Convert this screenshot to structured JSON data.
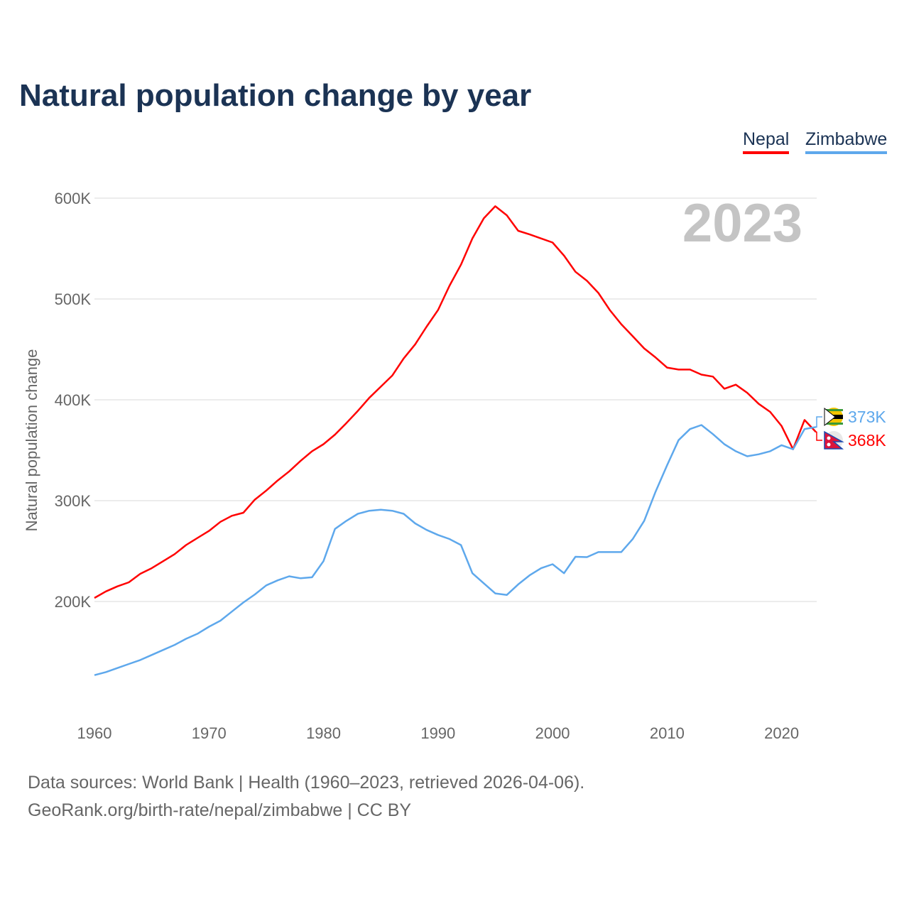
{
  "chart_data": {
    "type": "line",
    "title": "Natural population change by year",
    "xlabel": "",
    "ylabel": "Natural population change",
    "xlim": [
      1960,
      2023
    ],
    "ylim": [
      100000,
      600000
    ],
    "grid": true,
    "legend_position": "top-right",
    "year_watermark": "2023",
    "x_ticks": [
      "1960",
      "1970",
      "1980",
      "1990",
      "2000",
      "2010",
      "2020"
    ],
    "y_ticks": [
      {
        "value": 200000,
        "label": "200K"
      },
      {
        "value": 300000,
        "label": "300K"
      },
      {
        "value": 400000,
        "label": "400K"
      },
      {
        "value": 500000,
        "label": "500K"
      },
      {
        "value": 600000,
        "label": "600K"
      }
    ],
    "x": [
      1960,
      1961,
      1962,
      1963,
      1964,
      1965,
      1966,
      1967,
      1968,
      1969,
      1970,
      1971,
      1972,
      1973,
      1974,
      1975,
      1976,
      1977,
      1978,
      1979,
      1980,
      1981,
      1982,
      1983,
      1984,
      1985,
      1986,
      1987,
      1988,
      1989,
      1990,
      1991,
      1992,
      1993,
      1994,
      1995,
      1996,
      1997,
      1998,
      1999,
      2000,
      2001,
      2002,
      2003,
      2004,
      2005,
      2006,
      2007,
      2008,
      2009,
      2010,
      2011,
      2012,
      2013,
      2014,
      2015,
      2016,
      2017,
      2018,
      2019,
      2020,
      2021,
      2022,
      2023
    ],
    "series": [
      {
        "name": "Nepal",
        "color": "#ff0000",
        "end_label": "368K",
        "values": [
          203500,
          210000,
          215000,
          219000,
          227500,
          233000,
          240000,
          247000,
          256000,
          263000,
          270000,
          279000,
          285000,
          288000,
          301000,
          310000,
          320000,
          329000,
          339500,
          349000,
          356000,
          365500,
          377000,
          389000,
          402000,
          413000,
          424000,
          441000,
          455000,
          472500,
          489000,
          513000,
          534000,
          560000,
          580000,
          592000,
          583000,
          567600,
          564000,
          560000,
          556000,
          543000,
          527000,
          518000,
          506000,
          489000,
          475000,
          463000,
          451000,
          442000,
          432000,
          430000,
          430000,
          425000,
          423000,
          411000,
          415000,
          407000,
          396000,
          388000,
          374000,
          351000,
          380000,
          368000
        ]
      },
      {
        "name": "Zimbabwe",
        "color": "#5ea8ec",
        "end_label": "373K",
        "values": [
          127000,
          130000,
          134000,
          138000,
          142000,
          147000,
          152000,
          157000,
          163000,
          168000,
          175000,
          181000,
          190000,
          199000,
          207000,
          216000,
          221000,
          225000,
          223000,
          224000,
          240000,
          272000,
          280000,
          287000,
          290000,
          291000,
          290000,
          287000,
          277500,
          271000,
          266000,
          262000,
          256000,
          228000,
          218000,
          208000,
          206500,
          217000,
          226000,
          233000,
          237000,
          228000,
          244400,
          244000,
          249000,
          249000,
          249000,
          262000,
          280000,
          309000,
          335000,
          360000,
          371000,
          375000,
          366000,
          356000,
          349000,
          344000,
          346000,
          349000,
          355000,
          351000,
          371000,
          373000
        ]
      }
    ]
  },
  "footer": {
    "line1": "Data sources: World Bank | Health (1960–2023, retrieved 2026-04-06).",
    "line2": "GeoRank.org/birth-rate/nepal/zimbabwe | CC BY"
  }
}
